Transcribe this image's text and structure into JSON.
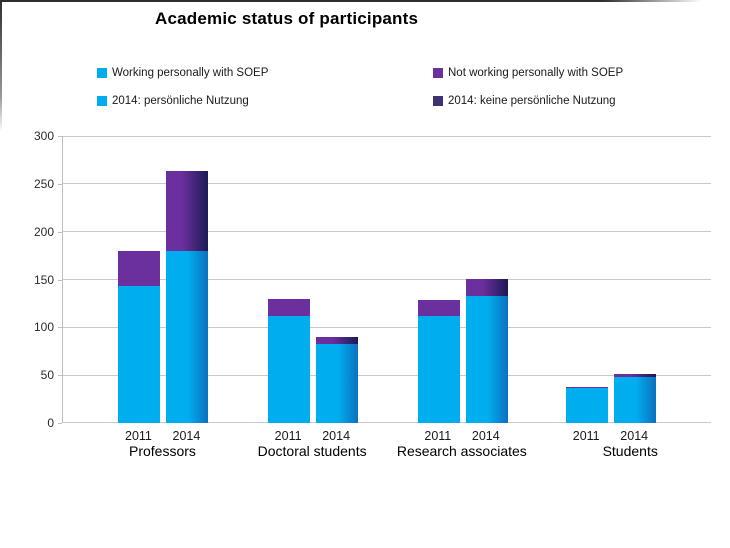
{
  "title": "Academic status of participants",
  "chart_data": {
    "type": "bar",
    "stacked": true,
    "title": "Academic status of participants",
    "categories": [
      "Professors",
      "Doctoral students",
      "Research associates",
      "Students"
    ],
    "year_pair_labels": [
      "2011",
      "2014"
    ],
    "series": [
      {
        "name": "Working personally with SOEP",
        "year": "2011",
        "stack": "2011",
        "color": "#00AEEF",
        "values": [
          143,
          112,
          112,
          37
        ]
      },
      {
        "name": "Not working personally with SOEP",
        "year": "2011",
        "stack": "2011",
        "color": "#6C2F9E",
        "values": [
          37,
          18,
          17,
          1
        ]
      },
      {
        "name": "2014: persönliche Nutzung",
        "year": "2014",
        "stack": "2014",
        "color": "#00AEEF",
        "gradient": {
          "from": "#00AEEF",
          "hold": "52%",
          "to": "#0C70C0"
        },
        "values": [
          180,
          83,
          133,
          48
        ]
      },
      {
        "name": "2014: keine persönliche Nutzung",
        "year": "2014",
        "stack": "2014",
        "color": "#3F3274",
        "gradient": {
          "from": "#6C2F9E",
          "hold": "38%",
          "to": "#1B1B56"
        },
        "values": [
          83,
          7,
          18,
          3
        ]
      }
    ],
    "stack_totals": {
      "2011": [
        180,
        130,
        129,
        38
      ],
      "2014": [
        263,
        90,
        151,
        51
      ]
    },
    "legend": [
      {
        "label": "Working personally with SOEP",
        "marker_color": "#00AEEF"
      },
      {
        "label": "Not working personally with SOEP",
        "marker_color": "#6C2F9E"
      },
      {
        "label": "2014: persönliche Nutzung",
        "marker_color": "#00AEEF"
      },
      {
        "label": "2014: keine persönliche Nutzung",
        "marker_color": "#3F3274"
      }
    ],
    "ylim": [
      0,
      300
    ],
    "yticks": [
      0,
      50,
      100,
      150,
      200,
      250,
      300
    ],
    "grid": true,
    "gridline_color": "#c9c9c9",
    "legend_position": "top"
  }
}
